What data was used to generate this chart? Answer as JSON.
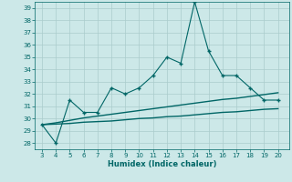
{
  "xlabel": "Humidex (Indice chaleur)",
  "x_data": [
    3,
    4,
    5,
    6,
    7,
    8,
    9,
    10,
    11,
    12,
    13,
    14,
    15,
    16,
    17,
    18,
    19,
    20
  ],
  "y_line1": [
    29.5,
    28.0,
    31.5,
    30.5,
    30.5,
    32.5,
    32.0,
    32.5,
    33.5,
    35.0,
    34.5,
    39.5,
    35.5,
    33.5,
    33.5,
    32.5,
    31.5,
    31.5
  ],
  "y_line2": [
    29.5,
    29.55,
    29.6,
    29.7,
    29.75,
    29.8,
    29.9,
    30.0,
    30.05,
    30.15,
    30.2,
    30.3,
    30.4,
    30.5,
    30.55,
    30.65,
    30.75,
    30.8
  ],
  "y_line3": [
    29.5,
    29.65,
    29.85,
    30.05,
    30.2,
    30.35,
    30.5,
    30.65,
    30.8,
    30.95,
    31.1,
    31.25,
    31.4,
    31.55,
    31.65,
    31.8,
    31.95,
    32.1
  ],
  "line_color": "#006666",
  "bg_color": "#cce8e8",
  "grid_color": "#aacccc",
  "ylim_min": 27.5,
  "ylim_max": 39.5,
  "xlim_min": 2.5,
  "xlim_max": 20.8,
  "yticks": [
    28,
    29,
    30,
    31,
    32,
    33,
    34,
    35,
    36,
    37,
    38,
    39
  ],
  "xticks": [
    3,
    4,
    5,
    6,
    7,
    8,
    9,
    10,
    11,
    12,
    13,
    14,
    15,
    16,
    17,
    18,
    19,
    20
  ],
  "tick_fontsize": 5.0,
  "xlabel_fontsize": 6.0
}
